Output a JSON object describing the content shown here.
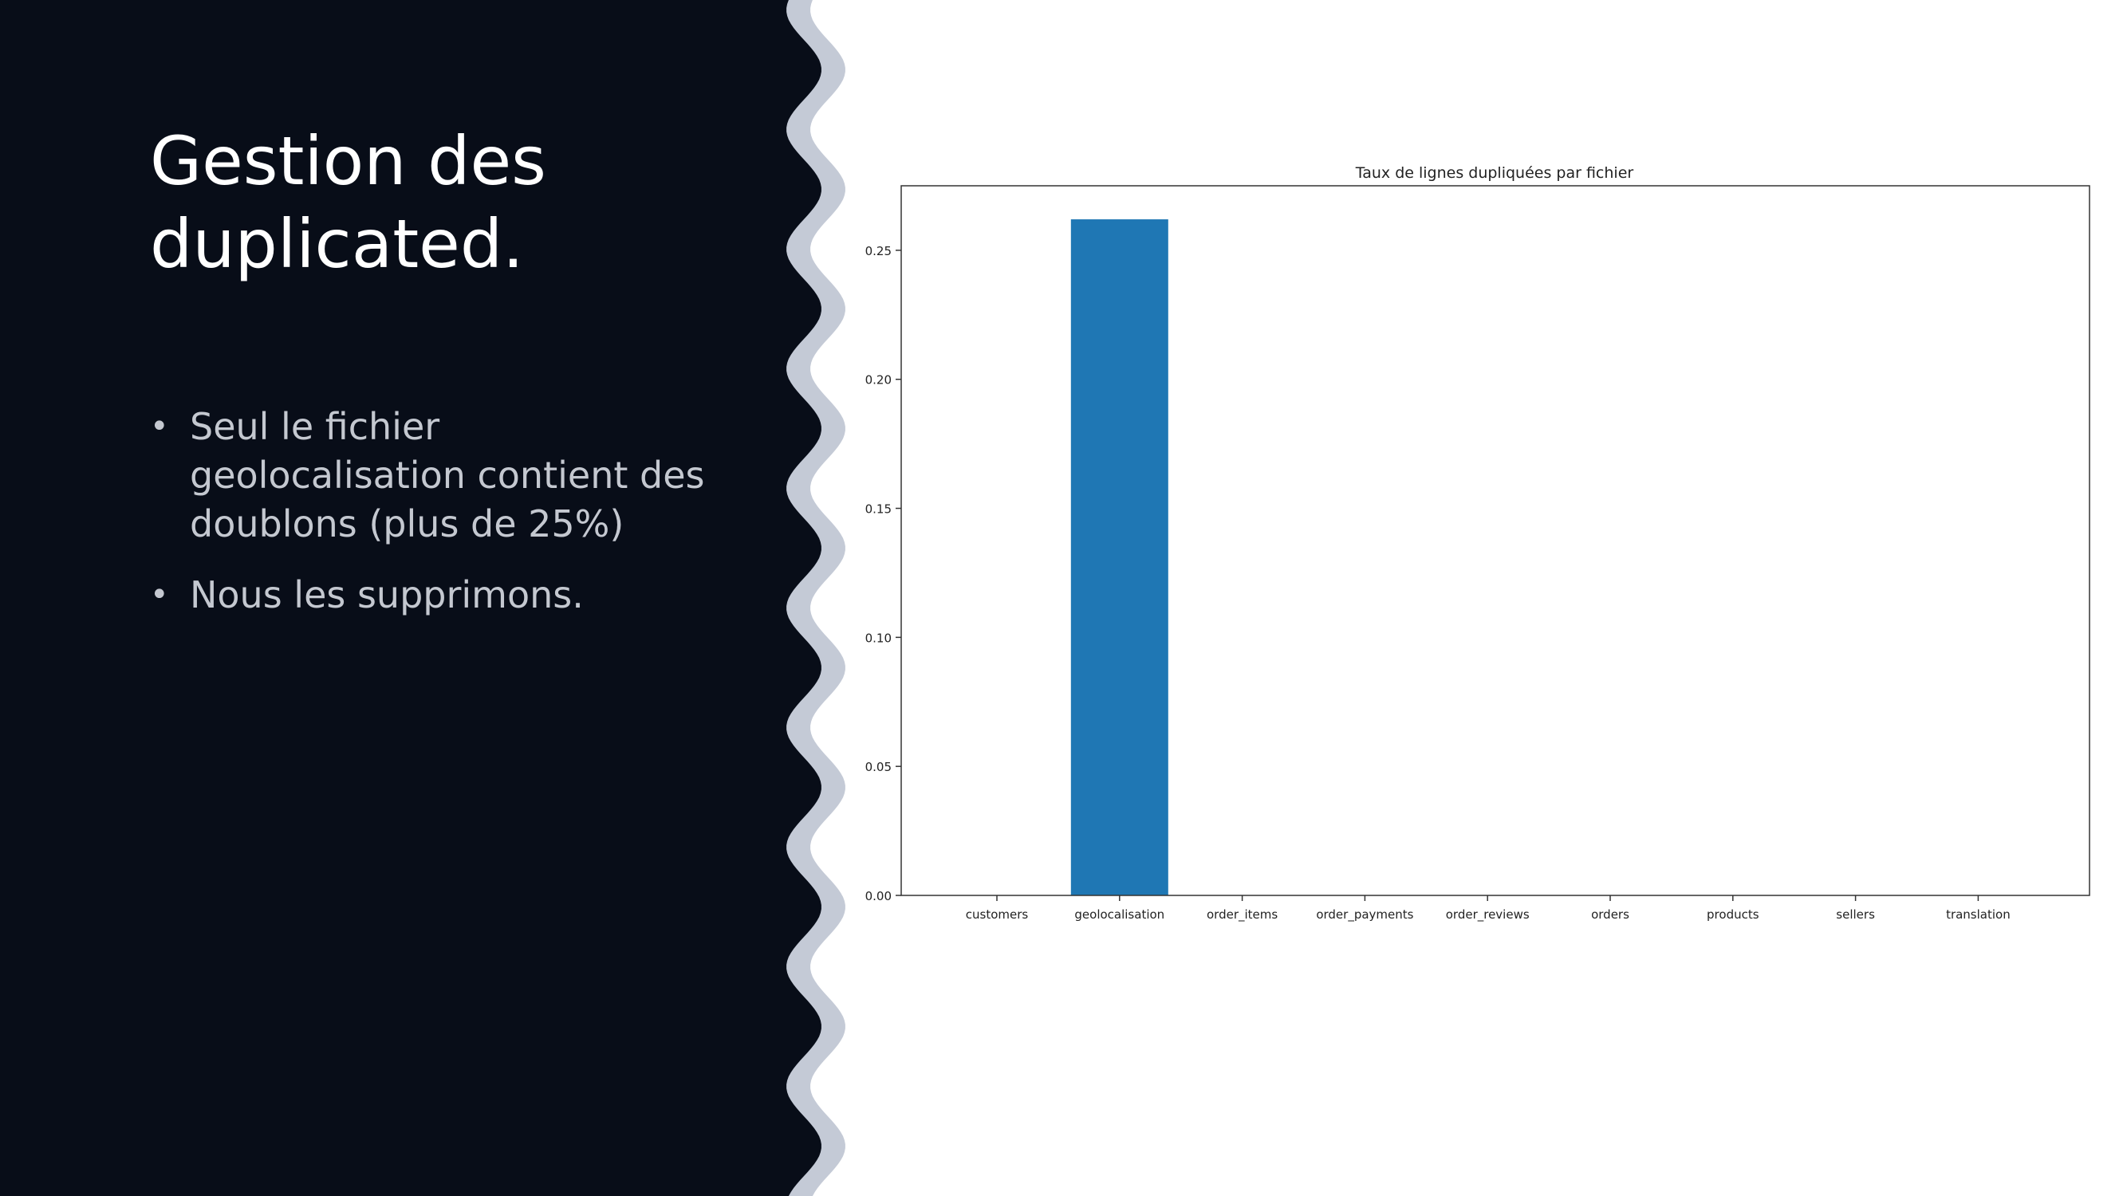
{
  "slide": {
    "title": "Gestion des duplicated.",
    "bullets": [
      "Seul le fichier geolocalisation contient des doublons (plus de 25%)",
      "Nous les supprimons."
    ],
    "bullet_symbol": "•"
  },
  "colors": {
    "panel_background": "#080d18",
    "wave_border": "#c4cad6",
    "bar": "#1f77b4",
    "bullet_text": "#c4c8d0"
  },
  "chart_data": {
    "type": "bar",
    "title": "Taux de lignes dupliquées par fichier",
    "xlabel": "",
    "ylabel": "",
    "categories": [
      "customers",
      "geolocalisation",
      "order_items",
      "order_payments",
      "order_reviews",
      "orders",
      "products",
      "sellers",
      "translation"
    ],
    "values": [
      0,
      0.262,
      0,
      0,
      0,
      0,
      0,
      0,
      0
    ],
    "ylim": [
      0,
      0.275
    ],
    "yticks": [
      "0.00",
      "0.05",
      "0.10",
      "0.15",
      "0.20",
      "0.25"
    ],
    "ytick_values": [
      0,
      0.05,
      0.1,
      0.15,
      0.2,
      0.25
    ],
    "grid": false,
    "legend": "none"
  }
}
